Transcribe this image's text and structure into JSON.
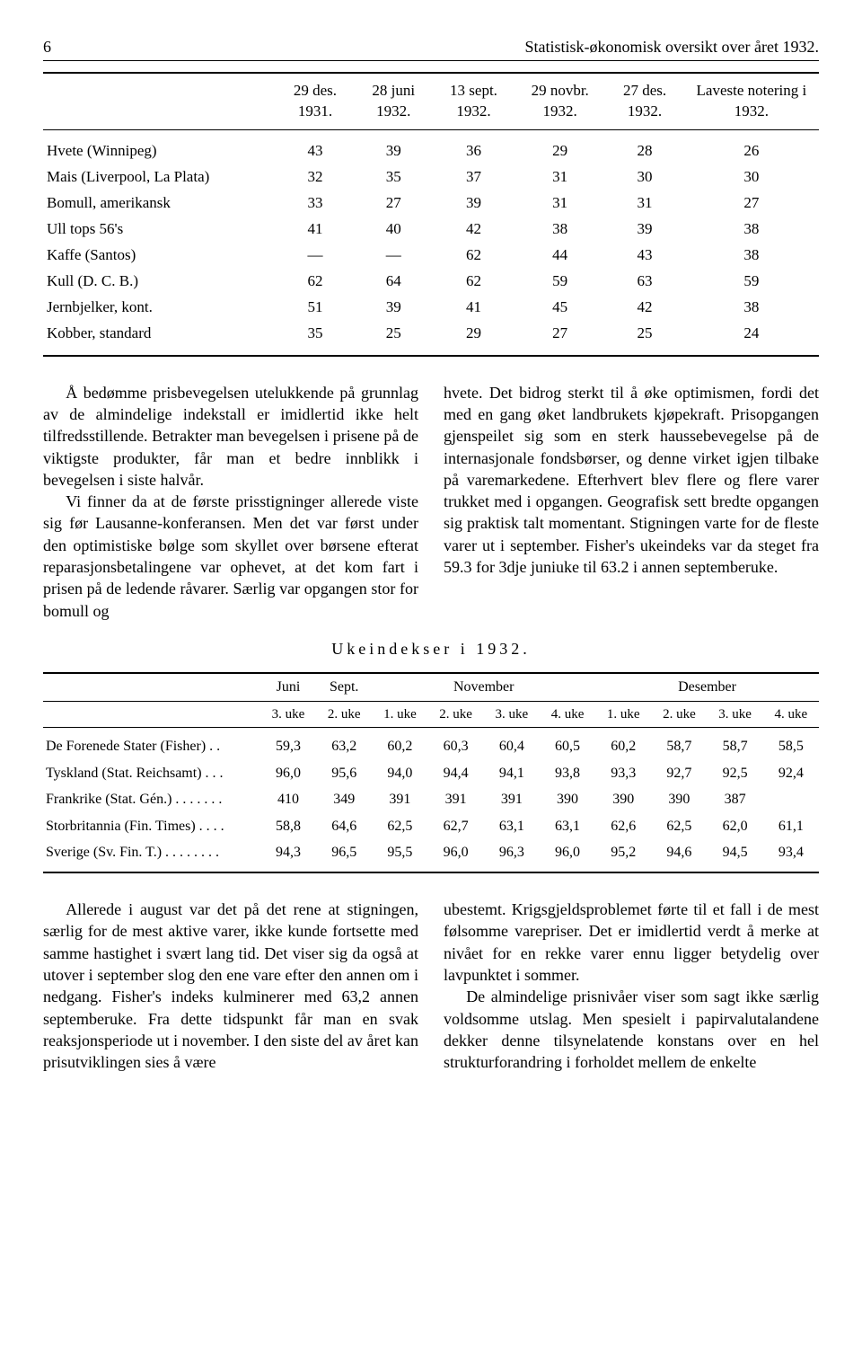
{
  "page_number": "6",
  "page_title": "Statistisk-økonomisk oversikt over året 1932.",
  "table1": {
    "columns": [
      "",
      "29 des. 1931.",
      "28 juni 1932.",
      "13 sept. 1932.",
      "29 novbr. 1932.",
      "27 des. 1932.",
      "Laveste notering i 1932."
    ],
    "rows": [
      {
        "label": "Hvete (Winnipeg)",
        "vals": [
          "43",
          "39",
          "36",
          "29",
          "28",
          "26"
        ]
      },
      {
        "label": "Mais (Liverpool, La Plata)",
        "vals": [
          "32",
          "35",
          "37",
          "31",
          "30",
          "30"
        ]
      },
      {
        "label": "Bomull, amerikansk",
        "vals": [
          "33",
          "27",
          "39",
          "31",
          "31",
          "27"
        ]
      },
      {
        "label": "Ull tops 56's",
        "vals": [
          "41",
          "40",
          "42",
          "38",
          "39",
          "38"
        ]
      },
      {
        "label": "Kaffe (Santos)",
        "vals": [
          "—",
          "—",
          "62",
          "44",
          "43",
          "38"
        ]
      },
      {
        "label": "Kull (D. C. B.)",
        "vals": [
          "62",
          "64",
          "62",
          "59",
          "63",
          "59"
        ]
      },
      {
        "label": "Jernbjelker, kont.",
        "vals": [
          "51",
          "39",
          "41",
          "45",
          "42",
          "38"
        ]
      },
      {
        "label": "Kobber, standard",
        "vals": [
          "35",
          "25",
          "29",
          "27",
          "25",
          "24"
        ]
      }
    ]
  },
  "para1": "Å bedømme prisbevegelsen utelukkende på grunnlag av de almindelige indekstall er imidlertid ikke helt tilfredsstillende. Betrakter man bevegelsen i prisene på de viktigste produkter, får man et bedre innblikk i bevegelsen i siste halvår.",
  "para2": "Vi finner da at de første prisstigninger allerede viste sig før Lausanne-konferansen. Men det var først under den optimistiske bølge som skyllet over børsene efterat reparasjonsbetalingene var ophevet, at det kom fart i prisen på de ledende råvarer. Særlig var opgangen stor for bomull og",
  "para3": "hvete. Det bidrog sterkt til å øke optimismen, fordi det med en gang øket landbrukets kjøpekraft. Prisopgangen gjenspeilet sig som en sterk haussebevegelse på de internasjonale fondsbørser, og denne virket igjen tilbake på varemarkedene. Efterhvert blev flere og flere varer trukket med i opgangen. Geografisk sett bredte opgangen sig praktisk talt momentant. Stigningen varte for de fleste varer ut i september. Fisher's ukeindeks var da steget fra 59.3 for 3dje juniuke til 63.2 i annen septemberuke.",
  "section_title": "Ukeindekser i 1932.",
  "table2": {
    "head_groups": [
      "",
      "Juni",
      "Sept.",
      "November",
      "Desember"
    ],
    "sub_cols": [
      "",
      "3. uke",
      "2. uke",
      "1. uke",
      "2. uke",
      "3. uke",
      "4. uke",
      "1. uke",
      "2. uke",
      "3. uke",
      "4. uke"
    ],
    "group_spans": [
      1,
      1,
      1,
      4,
      4
    ],
    "rows": [
      {
        "label": "De Forenede Stater (Fisher) . .",
        "vals": [
          "59,3",
          "63,2",
          "60,2",
          "60,3",
          "60,4",
          "60,5",
          "60,2",
          "58,7",
          "58,7",
          "58,5"
        ]
      },
      {
        "label": "Tyskland (Stat. Reichsamt) . . .",
        "vals": [
          "96,0",
          "95,6",
          "94,0",
          "94,4",
          "94,1",
          "93,8",
          "93,3",
          "92,7",
          "92,5",
          "92,4"
        ]
      },
      {
        "label": "Frankrike (Stat. Gén.) . . . . . . .",
        "vals": [
          "410",
          "349",
          "391",
          "391",
          "391",
          "390",
          "390",
          "390",
          "387",
          ""
        ]
      },
      {
        "label": "Storbritannia (Fin. Times) . . . .",
        "vals": [
          "58,8",
          "64,6",
          "62,5",
          "62,7",
          "63,1",
          "63,1",
          "62,6",
          "62,5",
          "62,0",
          "61,1"
        ]
      },
      {
        "label": "Sverige (Sv. Fin. T.) . . . . . . . .",
        "vals": [
          "94,3",
          "96,5",
          "95,5",
          "96,0",
          "96,3",
          "96,0",
          "95,2",
          "94,6",
          "94,5",
          "93,4"
        ]
      }
    ]
  },
  "para4": "Allerede i august var det på det rene at stigningen, særlig for de mest aktive varer, ikke kunde fortsette med samme hastighet i svært lang tid. Det viser sig da også at utover i september slog den ene vare efter den annen om i nedgang. Fisher's indeks kulminerer med 63,2 annen septemberuke. Fra dette tidspunkt får man en svak reaksjonsperiode ut i november. I den siste del av året kan prisutviklingen sies å være",
  "para5": "ubestemt. Krigsgjeldsproblemet førte til et fall i de mest følsomme varepriser. Det er imidlertid verdt å merke at nivået for en rekke varer ennu ligger betydelig over lavpunktet i sommer.",
  "para6": "De almindelige prisnivåer viser som sagt ikke særlig voldsomme utslag. Men spesielt i papirvalutalandene dekker denne tilsynelatende konstans over en hel strukturforandring i forholdet mellem de enkelte"
}
